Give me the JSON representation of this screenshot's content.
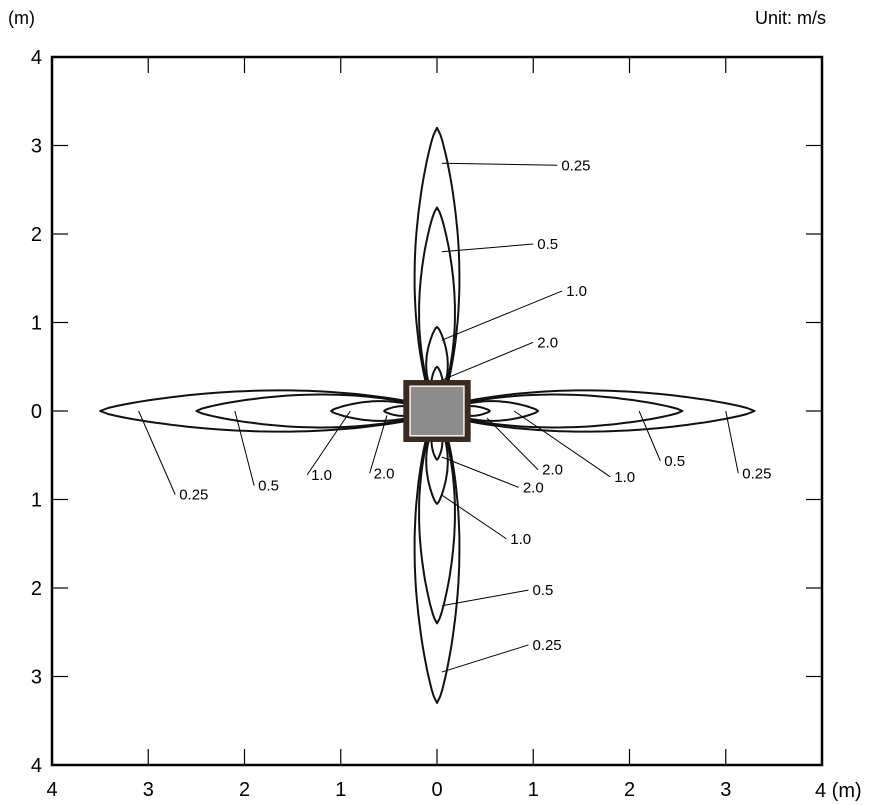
{
  "chart_data": {
    "type": "contour",
    "unit_label": "Unit: m/s",
    "axis_unit": "(m)",
    "x_unit_label": "4 (m)",
    "xlim": [
      -4,
      4
    ],
    "ylim": [
      -4,
      4
    ],
    "x_ticks": [
      -4,
      -3,
      -2,
      -1,
      0,
      1,
      2,
      3,
      4
    ],
    "y_ticks": [
      4,
      3,
      2,
      1,
      0,
      -1,
      -2,
      -3,
      -4
    ],
    "x_tick_labels": [
      "4",
      "3",
      "2",
      "1",
      "0",
      "1",
      "2",
      "3",
      ""
    ],
    "y_tick_labels": [
      "4",
      "3",
      "2",
      "1",
      "0",
      "1",
      "2",
      "3",
      "4"
    ],
    "grid": false,
    "contour_levels": [
      0.25,
      0.5,
      1.0,
      2.0
    ],
    "contours": [
      {
        "level": "0.25",
        "north": 3.2,
        "south": 3.3,
        "east": 3.3,
        "west": 3.5,
        "half_width": 0.25
      },
      {
        "level": "0.5",
        "north": 2.3,
        "south": 2.4,
        "east": 2.55,
        "west": 2.5,
        "half_width": 0.2
      },
      {
        "level": "1.0",
        "north": 0.95,
        "south": 1.05,
        "east": 1.05,
        "west": 1.1,
        "half_width": 0.12
      },
      {
        "level": "2.0",
        "north": 0.5,
        "south": 0.55,
        "east": 0.55,
        "west": 0.55,
        "half_width": 0.06
      }
    ],
    "center_unit": {
      "half_size": 0.35,
      "fill": "#8c8c8c",
      "frame": "#3a2a22"
    },
    "annotations": [
      {
        "text": "0.25",
        "label_at": [
          1.25,
          2.72
        ],
        "points_to": [
          0.05,
          2.8
        ]
      },
      {
        "text": "0.5",
        "label_at": [
          1.0,
          1.83
        ],
        "points_to": [
          0.05,
          1.8
        ]
      },
      {
        "text": "1.0",
        "label_at": [
          1.3,
          1.3
        ],
        "points_to": [
          0.05,
          0.8
        ]
      },
      {
        "text": "2.0",
        "label_at": [
          1.0,
          0.72
        ],
        "points_to": [
          0.05,
          0.35
        ]
      },
      {
        "text": "2.0",
        "label_at": [
          0.85,
          -0.92
        ],
        "points_to": [
          0.05,
          -0.52
        ]
      },
      {
        "text": "1.0",
        "label_at": [
          0.72,
          -1.5
        ],
        "points_to": [
          0.05,
          -0.95
        ]
      },
      {
        "text": "0.5",
        "label_at": [
          0.95,
          -2.08
        ],
        "points_to": [
          0.05,
          -2.2
        ]
      },
      {
        "text": "0.25",
        "label_at": [
          0.95,
          -2.7
        ],
        "points_to": [
          0.05,
          -2.95
        ]
      },
      {
        "text": "0.25",
        "label_at": [
          -2.72,
          -1.0
        ],
        "points_to": [
          -3.1,
          0.0
        ]
      },
      {
        "text": "0.5",
        "label_at": [
          -1.9,
          -0.9
        ],
        "points_to": [
          -2.1,
          0.0
        ]
      },
      {
        "text": "1.0",
        "label_at": [
          -1.35,
          -0.78
        ],
        "points_to": [
          -0.9,
          0.0
        ]
      },
      {
        "text": "2.0",
        "label_at": [
          -0.7,
          -0.76
        ],
        "points_to": [
          -0.52,
          -0.05
        ]
      },
      {
        "text": "2.0",
        "label_at": [
          1.05,
          -0.72
        ],
        "points_to": [
          0.52,
          -0.08
        ]
      },
      {
        "text": "1.0",
        "label_at": [
          1.8,
          -0.8
        ],
        "points_to": [
          0.8,
          0.0
        ]
      },
      {
        "text": "0.5",
        "label_at": [
          2.32,
          -0.62
        ],
        "points_to": [
          2.1,
          0.0
        ]
      },
      {
        "text": "0.25",
        "label_at": [
          3.13,
          -0.76
        ],
        "points_to": [
          3.0,
          0.0
        ]
      }
    ]
  }
}
